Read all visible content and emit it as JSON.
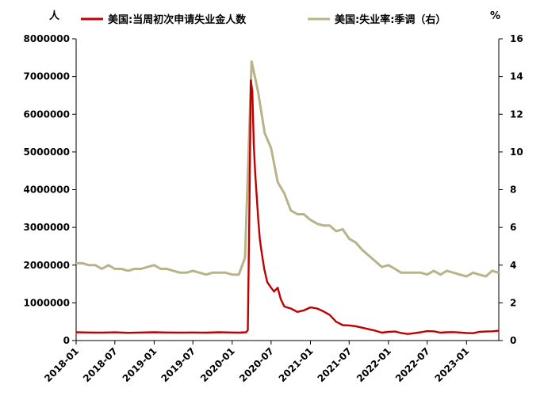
{
  "chart_data": {
    "type": "line",
    "left_unit": "人",
    "right_unit": "%",
    "y_left": {
      "ylim": [
        0,
        8000000
      ],
      "ticks": [
        "0",
        "1000000",
        "2000000",
        "3000000",
        "4000000",
        "5000000",
        "6000000",
        "7000000",
        "8000000"
      ]
    },
    "y_right": {
      "ylim": [
        0,
        16
      ],
      "ticks": [
        "0",
        "2",
        "4",
        "6",
        "8",
        "10",
        "12",
        "14",
        "16"
      ]
    },
    "x_ticks": [
      "2018-01",
      "2018-07",
      "2019-01",
      "2019-07",
      "2020-01",
      "2020-07",
      "2021-01",
      "2021-07",
      "2022-01",
      "2022-07",
      "2023-01"
    ],
    "x_range": [
      "2018-01",
      "2023-06"
    ],
    "grid": false,
    "legend_position": "top",
    "series": [
      {
        "name": "美国:当周初次申请失业金人数",
        "axis": "left",
        "color": "#C00000",
        "points": [
          [
            "2018-01",
            220000
          ],
          [
            "2018-03",
            215000
          ],
          [
            "2018-05",
            212000
          ],
          [
            "2018-07",
            218000
          ],
          [
            "2018-09",
            205000
          ],
          [
            "2018-11",
            215000
          ],
          [
            "2019-01",
            220000
          ],
          [
            "2019-03",
            215000
          ],
          [
            "2019-05",
            212000
          ],
          [
            "2019-07",
            215000
          ],
          [
            "2019-09",
            210000
          ],
          [
            "2019-11",
            220000
          ],
          [
            "2020-01",
            215000
          ],
          [
            "2020-02",
            210000
          ],
          [
            "2020-03-07",
            220000
          ],
          [
            "2020-03-14",
            280000
          ],
          [
            "2020-03-21",
            3300000
          ],
          [
            "2020-03-28",
            6900000
          ],
          [
            "2020-04-04",
            6600000
          ],
          [
            "2020-04-11",
            5200000
          ],
          [
            "2020-04-18",
            4400000
          ],
          [
            "2020-04-25",
            3800000
          ],
          [
            "2020-05-02",
            3200000
          ],
          [
            "2020-05-09",
            2700000
          ],
          [
            "2020-05-16",
            2400000
          ],
          [
            "2020-05-30",
            1900000
          ],
          [
            "2020-06-13",
            1550000
          ],
          [
            "2020-07-01",
            1400000
          ],
          [
            "2020-07-15",
            1300000
          ],
          [
            "2020-08-01",
            1400000
          ],
          [
            "2020-08-15",
            1100000
          ],
          [
            "2020-09-01",
            900000
          ],
          [
            "2020-10-01",
            850000
          ],
          [
            "2020-11-01",
            760000
          ],
          [
            "2020-12-01",
            800000
          ],
          [
            "2021-01-01",
            880000
          ],
          [
            "2021-02-01",
            850000
          ],
          [
            "2021-03-01",
            780000
          ],
          [
            "2021-04-01",
            680000
          ],
          [
            "2021-05-01",
            500000
          ],
          [
            "2021-06-01",
            410000
          ],
          [
            "2021-07-01",
            400000
          ],
          [
            "2021-08-01",
            380000
          ],
          [
            "2021-09-01",
            340000
          ],
          [
            "2021-10-01",
            300000
          ],
          [
            "2021-11-01",
            260000
          ],
          [
            "2021-12-01",
            210000
          ],
          [
            "2022-01-01",
            230000
          ],
          [
            "2022-02-01",
            240000
          ],
          [
            "2022-03-01",
            200000
          ],
          [
            "2022-04-01",
            175000
          ],
          [
            "2022-05-01",
            195000
          ],
          [
            "2022-06-01",
            220000
          ],
          [
            "2022-07-01",
            250000
          ],
          [
            "2022-08-01",
            245000
          ],
          [
            "2022-09-01",
            210000
          ],
          [
            "2022-10-01",
            220000
          ],
          [
            "2022-11-01",
            225000
          ],
          [
            "2022-12-01",
            215000
          ],
          [
            "2023-01-01",
            200000
          ],
          [
            "2023-02-01",
            195000
          ],
          [
            "2023-03-01",
            230000
          ],
          [
            "2023-04-01",
            240000
          ],
          [
            "2023-05-01",
            245000
          ],
          [
            "2023-06-01",
            260000
          ]
        ]
      },
      {
        "name": "美国:失业率:季调（右）",
        "axis": "right",
        "color": "#B8B389",
        "points": [
          [
            "2018-01",
            4.1
          ],
          [
            "2018-02",
            4.1
          ],
          [
            "2018-03",
            4.0
          ],
          [
            "2018-04",
            4.0
          ],
          [
            "2018-05",
            3.8
          ],
          [
            "2018-06",
            4.0
          ],
          [
            "2018-07",
            3.8
          ],
          [
            "2018-08",
            3.8
          ],
          [
            "2018-09",
            3.7
          ],
          [
            "2018-10",
            3.8
          ],
          [
            "2018-11",
            3.8
          ],
          [
            "2018-12",
            3.9
          ],
          [
            "2019-01",
            4.0
          ],
          [
            "2019-02",
            3.8
          ],
          [
            "2019-03",
            3.8
          ],
          [
            "2019-04",
            3.7
          ],
          [
            "2019-05",
            3.6
          ],
          [
            "2019-06",
            3.6
          ],
          [
            "2019-07",
            3.7
          ],
          [
            "2019-08",
            3.6
          ],
          [
            "2019-09",
            3.5
          ],
          [
            "2019-10",
            3.6
          ],
          [
            "2019-11",
            3.6
          ],
          [
            "2019-12",
            3.6
          ],
          [
            "2020-01",
            3.5
          ],
          [
            "2020-02",
            3.5
          ],
          [
            "2020-03",
            4.4
          ],
          [
            "2020-04",
            14.8
          ],
          [
            "2020-05",
            13.2
          ],
          [
            "2020-06",
            11.0
          ],
          [
            "2020-07",
            10.2
          ],
          [
            "2020-08",
            8.4
          ],
          [
            "2020-09",
            7.8
          ],
          [
            "2020-10",
            6.9
          ],
          [
            "2020-11",
            6.7
          ],
          [
            "2020-12",
            6.7
          ],
          [
            "2021-01",
            6.4
          ],
          [
            "2021-02",
            6.2
          ],
          [
            "2021-03",
            6.1
          ],
          [
            "2021-04",
            6.1
          ],
          [
            "2021-05",
            5.8
          ],
          [
            "2021-06",
            5.9
          ],
          [
            "2021-07",
            5.4
          ],
          [
            "2021-08",
            5.2
          ],
          [
            "2021-09",
            4.8
          ],
          [
            "2021-10",
            4.5
          ],
          [
            "2021-11",
            4.2
          ],
          [
            "2021-12",
            3.9
          ],
          [
            "2022-01",
            4.0
          ],
          [
            "2022-02",
            3.8
          ],
          [
            "2022-03",
            3.6
          ],
          [
            "2022-04",
            3.6
          ],
          [
            "2022-05",
            3.6
          ],
          [
            "2022-06",
            3.6
          ],
          [
            "2022-07",
            3.5
          ],
          [
            "2022-08",
            3.7
          ],
          [
            "2022-09",
            3.5
          ],
          [
            "2022-10",
            3.7
          ],
          [
            "2022-11",
            3.6
          ],
          [
            "2022-12",
            3.5
          ],
          [
            "2023-01",
            3.4
          ],
          [
            "2023-02",
            3.6
          ],
          [
            "2023-03",
            3.5
          ],
          [
            "2023-04",
            3.4
          ],
          [
            "2023-05",
            3.7
          ],
          [
            "2023-06",
            3.6
          ]
        ]
      }
    ]
  }
}
